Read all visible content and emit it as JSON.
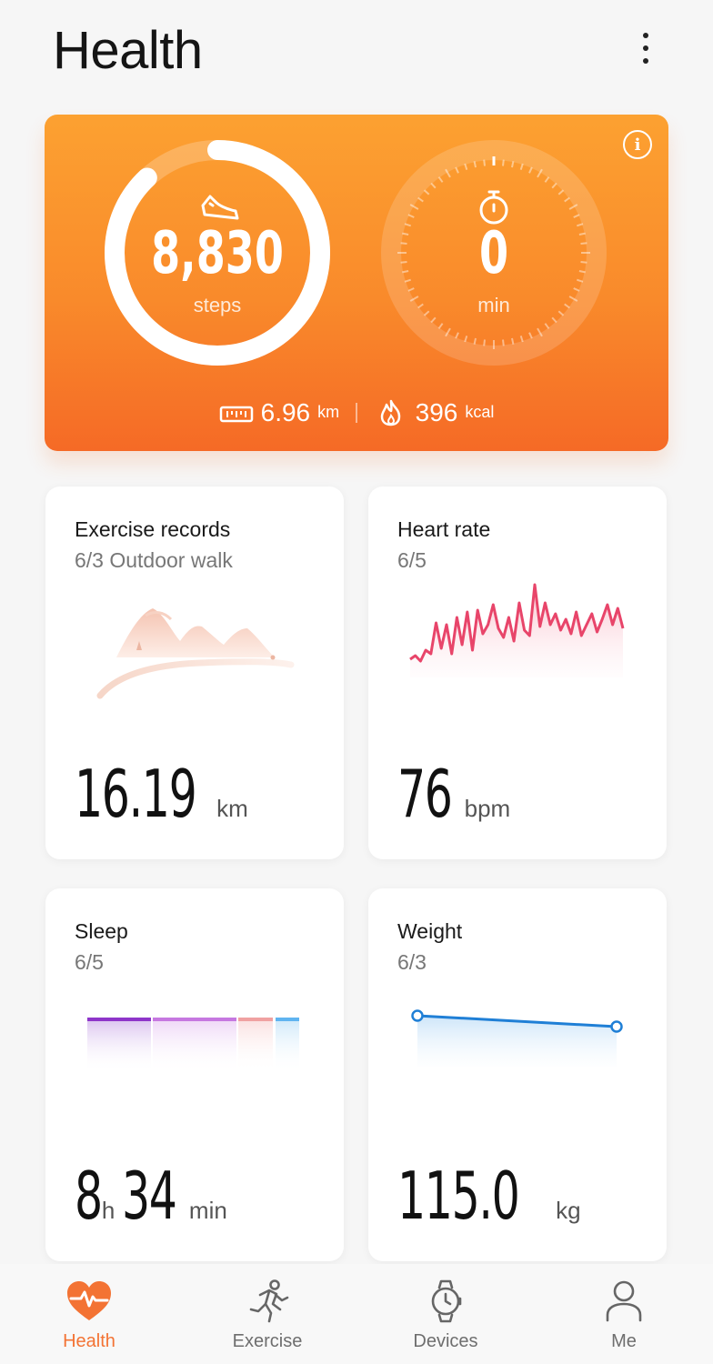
{
  "header": {
    "title": "Health"
  },
  "activity": {
    "steps": {
      "value": "8,830",
      "unit": "steps",
      "goal_progress": 0.88
    },
    "exercise": {
      "value": "0",
      "unit": "min"
    },
    "distance": {
      "value": "6.96",
      "unit": "km"
    },
    "calories": {
      "value": "396",
      "unit": "kcal"
    }
  },
  "cards": {
    "exercise_records": {
      "title": "Exercise records",
      "subtitle": "6/3 Outdoor walk",
      "value": "16.19",
      "unit": "km"
    },
    "heart_rate": {
      "title": "Heart rate",
      "subtitle": "6/5",
      "value": "76",
      "unit": "bpm"
    },
    "sleep": {
      "title": "Sleep",
      "subtitle": "6/5",
      "hours": "8",
      "hours_unit": "h",
      "minutes": "34",
      "minutes_unit": "min"
    },
    "weight": {
      "title": "Weight",
      "subtitle": "6/3",
      "value": "115.0",
      "unit": "kg"
    }
  },
  "tabs": [
    {
      "label": "Health",
      "icon": "heart-pulse-icon",
      "active": true
    },
    {
      "label": "Exercise",
      "icon": "runner-icon",
      "active": false
    },
    {
      "label": "Devices",
      "icon": "watch-icon",
      "active": false
    },
    {
      "label": "Me",
      "icon": "person-icon",
      "active": false
    }
  ],
  "colors": {
    "accent": "#f37334",
    "hero_top": "#fca131",
    "hero_bottom": "#f56a26",
    "heart_line": "#e8456a",
    "weight_line": "#1f7fd6",
    "sleep_deep": "#8e35c9",
    "sleep_light": "#c678e0",
    "sleep_rem": "#f0a1a1",
    "sleep_awake": "#5fb4f0"
  }
}
